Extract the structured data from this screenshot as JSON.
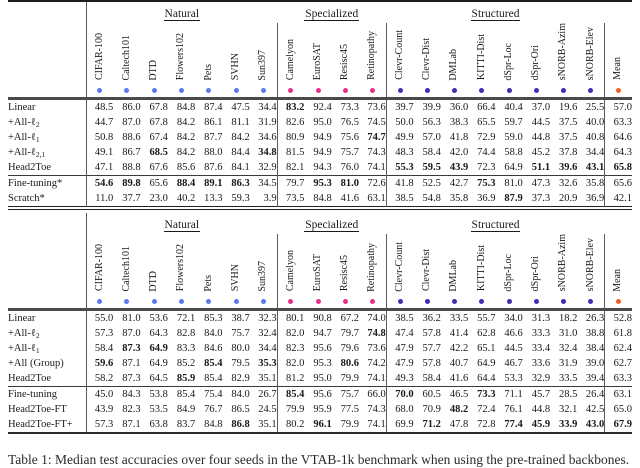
{
  "caption": "Table 1: Median test accuracies over four seeds in the VTAB-1k benchmark when using the pre-trained backbones.",
  "legend_colors": {
    "natural": "#5b7be8",
    "specialized": "#e8308a",
    "structured": "#3d2eb4",
    "mean": "#ee5f22"
  },
  "column_groups": [
    {
      "key": "natural",
      "label": "Natural",
      "columns": [
        "CIFAR-100",
        "Caltech101",
        "DTD",
        "Flowers102",
        "Pets",
        "SVHN",
        "Sun397"
      ]
    },
    {
      "key": "specialized",
      "label": "Specialized",
      "columns": [
        "Camelyon",
        "EuroSAT",
        "Resisc45",
        "Retinopathy"
      ]
    },
    {
      "key": "structured",
      "label": "Structured",
      "columns": [
        "Clevr-Count",
        "Clevr-Dist",
        "DMLab",
        "KITTI-Dist",
        "dSpr-Loc",
        "dSpr-Ori",
        "sNORB-Azim",
        "sNORB-Elev"
      ]
    }
  ],
  "mean_column": {
    "key": "mean",
    "label": "Mean"
  },
  "tables": [
    {
      "id": "table-top",
      "rows": [
        {
          "label": "Linear",
          "rule_above": false,
          "bold": [
            7
          ],
          "values": [
            "48.5",
            "86.0",
            "67.8",
            "84.8",
            "87.4",
            "47.5",
            "34.4",
            "83.2",
            "92.4",
            "73.3",
            "73.6",
            "39.7",
            "39.9",
            "36.0",
            "66.4",
            "40.4",
            "37.0",
            "19.6",
            "25.5",
            "57.0"
          ]
        },
        {
          "label": "+All-ℓ_{2}",
          "rule_above": false,
          "bold": [],
          "values": [
            "44.7",
            "87.0",
            "67.8",
            "84.2",
            "86.1",
            "81.1",
            "31.9",
            "82.6",
            "95.0",
            "76.5",
            "74.5",
            "50.0",
            "56.3",
            "38.3",
            "65.5",
            "59.7",
            "44.5",
            "37.5",
            "40.0",
            "63.3"
          ]
        },
        {
          "label": "+All-ℓ_{1}",
          "rule_above": false,
          "bold": [
            10
          ],
          "values": [
            "50.8",
            "88.6",
            "67.4",
            "84.2",
            "87.7",
            "84.2",
            "34.6",
            "80.9",
            "94.9",
            "75.6",
            "74.7",
            "49.9",
            "57.0",
            "41.8",
            "72.9",
            "59.0",
            "44.8",
            "37.5",
            "40.8",
            "64.6"
          ]
        },
        {
          "label": "+All-ℓ_{2,1}",
          "rule_above": false,
          "bold": [
            2,
            6
          ],
          "values": [
            "49.1",
            "86.7",
            "68.5",
            "84.2",
            "88.0",
            "84.4",
            "34.8",
            "81.5",
            "94.9",
            "75.7",
            "74.3",
            "48.3",
            "58.4",
            "42.0",
            "74.4",
            "58.8",
            "45.2",
            "37.8",
            "34.4",
            "64.3"
          ]
        },
        {
          "label": "Head2Toe",
          "rule_above": false,
          "bold": [
            11,
            12,
            13,
            16,
            17,
            18,
            19
          ],
          "values": [
            "47.1",
            "88.8",
            "67.6",
            "85.6",
            "87.6",
            "84.1",
            "32.9",
            "82.1",
            "94.3",
            "76.0",
            "74.1",
            "55.3",
            "59.5",
            "43.9",
            "72.3",
            "64.9",
            "51.1",
            "39.6",
            "43.1",
            "65.8"
          ]
        },
        {
          "label": "Fine-tuning*",
          "rule_above": true,
          "bold": [
            0,
            1,
            3,
            4,
            5,
            8,
            9,
            14
          ],
          "values": [
            "54.6",
            "89.8",
            "65.6",
            "88.4",
            "89.1",
            "86.3",
            "34.5",
            "79.7",
            "95.3",
            "81.0",
            "72.6",
            "41.8",
            "52.5",
            "42.7",
            "75.3",
            "81.0",
            "47.3",
            "32.6",
            "35.8",
            "65.6"
          ]
        },
        {
          "label": "Scratch*",
          "rule_above": false,
          "bold": [
            15
          ],
          "values": [
            "11.0",
            "37.7",
            "23.0",
            "40.2",
            "13.3",
            "59.3",
            "3.9",
            "73.5",
            "84.8",
            "41.6",
            "63.1",
            "38.5",
            "54.8",
            "35.8",
            "36.9",
            "87.9",
            "37.3",
            "20.9",
            "36.9",
            "42.1"
          ]
        }
      ]
    },
    {
      "id": "table-bottom",
      "rows": [
        {
          "label": "Linear",
          "rule_above": false,
          "bold": [],
          "values": [
            "55.0",
            "81.0",
            "53.6",
            "72.1",
            "85.3",
            "38.7",
            "32.3",
            "80.1",
            "90.8",
            "67.2",
            "74.0",
            "38.5",
            "36.2",
            "33.5",
            "55.7",
            "34.0",
            "31.3",
            "18.2",
            "26.3",
            "52.8"
          ]
        },
        {
          "label": "+All-ℓ_{2}",
          "rule_above": false,
          "bold": [
            10
          ],
          "values": [
            "57.3",
            "87.0",
            "64.3",
            "82.8",
            "84.0",
            "75.7",
            "32.4",
            "82.0",
            "94.7",
            "79.7",
            "74.8",
            "47.4",
            "57.8",
            "41.4",
            "62.8",
            "46.6",
            "33.3",
            "31.0",
            "38.8",
            "61.8"
          ]
        },
        {
          "label": "+All-ℓ_{1}",
          "rule_above": false,
          "bold": [
            1,
            2
          ],
          "values": [
            "58.4",
            "87.3",
            "64.9",
            "83.3",
            "84.6",
            "80.0",
            "34.4",
            "82.3",
            "95.6",
            "79.6",
            "73.6",
            "47.9",
            "57.7",
            "42.2",
            "65.1",
            "44.5",
            "33.4",
            "32.4",
            "38.4",
            "62.4"
          ]
        },
        {
          "label": "+All (Group)",
          "rule_above": false,
          "bold": [
            0,
            4,
            6,
            9
          ],
          "values": [
            "59.6",
            "87.1",
            "64.9",
            "85.2",
            "85.4",
            "79.5",
            "35.3",
            "82.0",
            "95.3",
            "80.6",
            "74.2",
            "47.9",
            "57.8",
            "40.7",
            "64.9",
            "46.7",
            "33.6",
            "31.9",
            "39.0",
            "62.7"
          ]
        },
        {
          "label": "Head2Toe",
          "rule_above": false,
          "bold": [
            3
          ],
          "values": [
            "58.2",
            "87.3",
            "64.5",
            "85.9",
            "85.4",
            "82.9",
            "35.1",
            "81.2",
            "95.0",
            "79.9",
            "74.1",
            "49.3",
            "58.4",
            "41.6",
            "64.4",
            "53.3",
            "32.9",
            "33.5",
            "39.4",
            "63.3"
          ]
        },
        {
          "label": "Fine-tuning",
          "rule_above": true,
          "bold": [
            7,
            11,
            14
          ],
          "values": [
            "45.0",
            "84.3",
            "53.8",
            "85.4",
            "75.4",
            "84.0",
            "26.7",
            "85.4",
            "95.6",
            "75.7",
            "66.0",
            "70.0",
            "60.5",
            "46.5",
            "73.3",
            "71.1",
            "45.7",
            "28.5",
            "26.4",
            "63.1"
          ]
        },
        {
          "label": "Head2Toe-FT",
          "rule_above": false,
          "bold": [
            13
          ],
          "values": [
            "43.9",
            "82.3",
            "53.5",
            "84.9",
            "76.7",
            "86.5",
            "24.5",
            "79.9",
            "95.9",
            "77.5",
            "74.3",
            "68.0",
            "70.9",
            "48.2",
            "72.4",
            "76.1",
            "44.8",
            "32.1",
            "42.5",
            "65.0"
          ]
        },
        {
          "label": "Head2Toe-FT+",
          "rule_above": false,
          "bold": [
            5,
            8,
            12,
            15,
            16,
            17,
            18,
            19
          ],
          "values": [
            "57.3",
            "87.1",
            "63.8",
            "83.7",
            "84.8",
            "86.8",
            "35.1",
            "80.2",
            "96.1",
            "79.9",
            "74.1",
            "69.9",
            "71.2",
            "47.8",
            "72.8",
            "77.4",
            "45.9",
            "33.9",
            "43.0",
            "67.9"
          ]
        }
      ]
    }
  ]
}
